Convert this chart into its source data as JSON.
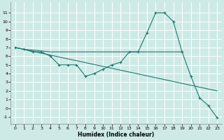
{
  "xlabel": "Humidex (Indice chaleur)",
  "xlim": [
    -0.5,
    23.5
  ],
  "ylim": [
    -1.8,
    12.2
  ],
  "yticks": [
    -1,
    0,
    1,
    2,
    3,
    4,
    5,
    6,
    7,
    8,
    9,
    10,
    11
  ],
  "xticks": [
    0,
    1,
    2,
    3,
    4,
    5,
    6,
    7,
    8,
    9,
    10,
    11,
    12,
    13,
    14,
    15,
    16,
    17,
    18,
    19,
    20,
    21,
    22,
    23
  ],
  "bg_color": "#ceeae7",
  "grid_color": "#ffffff",
  "line_color": "#1a7a6e",
  "line1_markers": {
    "x": [
      0,
      1,
      2,
      3,
      4,
      5,
      6,
      7,
      8,
      9,
      10,
      11,
      12,
      13,
      14,
      15,
      16,
      17,
      18,
      19,
      20,
      21,
      22,
      23
    ],
    "y": [
      7.0,
      6.8,
      6.5,
      6.5,
      6.0,
      5.0,
      5.0,
      5.0,
      3.7,
      4.0,
      4.5,
      5.0,
      5.3,
      6.5,
      6.5,
      8.7,
      11.0,
      11.0,
      10.0,
      6.5,
      3.7,
      1.2,
      0.3,
      -1.1
    ]
  },
  "line2_flat": {
    "x": [
      0,
      1,
      2,
      3,
      4,
      5,
      6,
      7,
      8,
      9,
      10,
      11,
      12,
      13,
      14,
      15,
      16,
      17,
      18,
      19
    ],
    "y": [
      7.0,
      6.8,
      6.7,
      6.6,
      6.5,
      6.5,
      6.5,
      6.5,
      6.5,
      6.5,
      6.5,
      6.5,
      6.5,
      6.5,
      6.5,
      6.5,
      6.5,
      6.5,
      6.5,
      6.5
    ]
  },
  "line3_diagonal": {
    "x": [
      0,
      23
    ],
    "y": [
      7.0,
      2.0
    ]
  }
}
